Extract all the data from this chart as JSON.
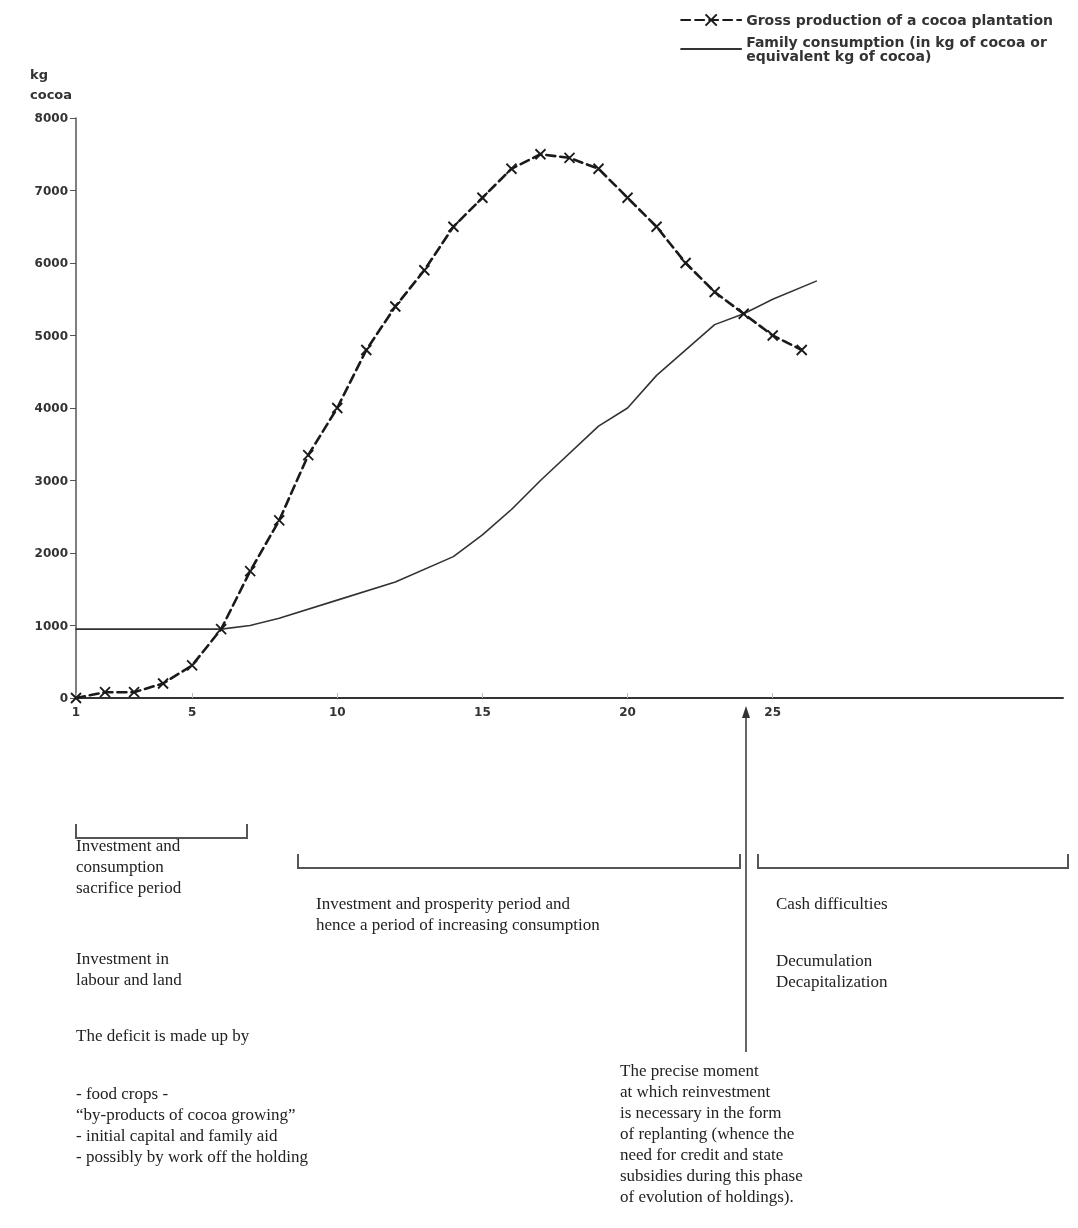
{
  "chart_data": {
    "type": "line",
    "ylabel": "kg cocoa",
    "xlim": [
      1,
      35
    ],
    "xticks": [
      1,
      5,
      10,
      15,
      20,
      25
    ],
    "ylim": [
      0,
      8000
    ],
    "yticks": [
      0,
      1000,
      2000,
      3000,
      4000,
      5000,
      6000,
      7000,
      8000
    ],
    "grid": false,
    "legend": "top right",
    "series": [
      {
        "name": "Gross production of a cocoa plantation",
        "color": "#1a1a1a",
        "marker": "cross",
        "line_style": "dashed",
        "x": [
          1,
          2,
          3,
          4,
          5,
          6,
          7,
          8,
          9,
          10,
          11,
          12,
          13,
          14,
          15,
          16,
          17,
          18,
          19,
          20,
          21,
          22,
          23,
          24,
          25,
          26
        ],
        "values": [
          0,
          80,
          80,
          200,
          450,
          950,
          1750,
          2450,
          3350,
          4000,
          4800,
          5400,
          5900,
          6500,
          6900,
          7300,
          7500,
          7450,
          7300,
          6900,
          6500,
          6000,
          5600,
          5300,
          5000,
          4800
        ]
      },
      {
        "name": "Family consumption (in kg of cocoa or equivalent kg of cocoa)",
        "color": "#333333",
        "marker": "none",
        "line_style": "solid",
        "x": [
          1,
          6,
          7,
          8,
          10,
          12,
          14,
          15,
          16,
          17,
          19,
          20,
          21,
          23,
          24,
          25,
          26.5
        ],
        "values": [
          950,
          950,
          1000,
          1100,
          1350,
          1600,
          1950,
          2250,
          2600,
          3000,
          3750,
          4000,
          4450,
          5150,
          5300,
          5500,
          5750
        ]
      }
    ],
    "annotations": [
      "Investment and\nconsumption\nsacrifice period",
      "Investment in\nlabour and land",
      "The deficit is made up by",
      "- food crops -\n“by-products of cocoa growing”\n- initial capital and family aid\n- possibly by work off the holding",
      "Investment and prosperity period and\nhence a period of increasing consumption",
      "Cash difficulties",
      "Decumulation\nDecapitalization",
      "The precise moment\nat which reinvestment\nis necessary in the form\nof replanting (whence the\nneed for credit and state\nsubsidies during this phase\nof evolution of holdings)."
    ]
  }
}
